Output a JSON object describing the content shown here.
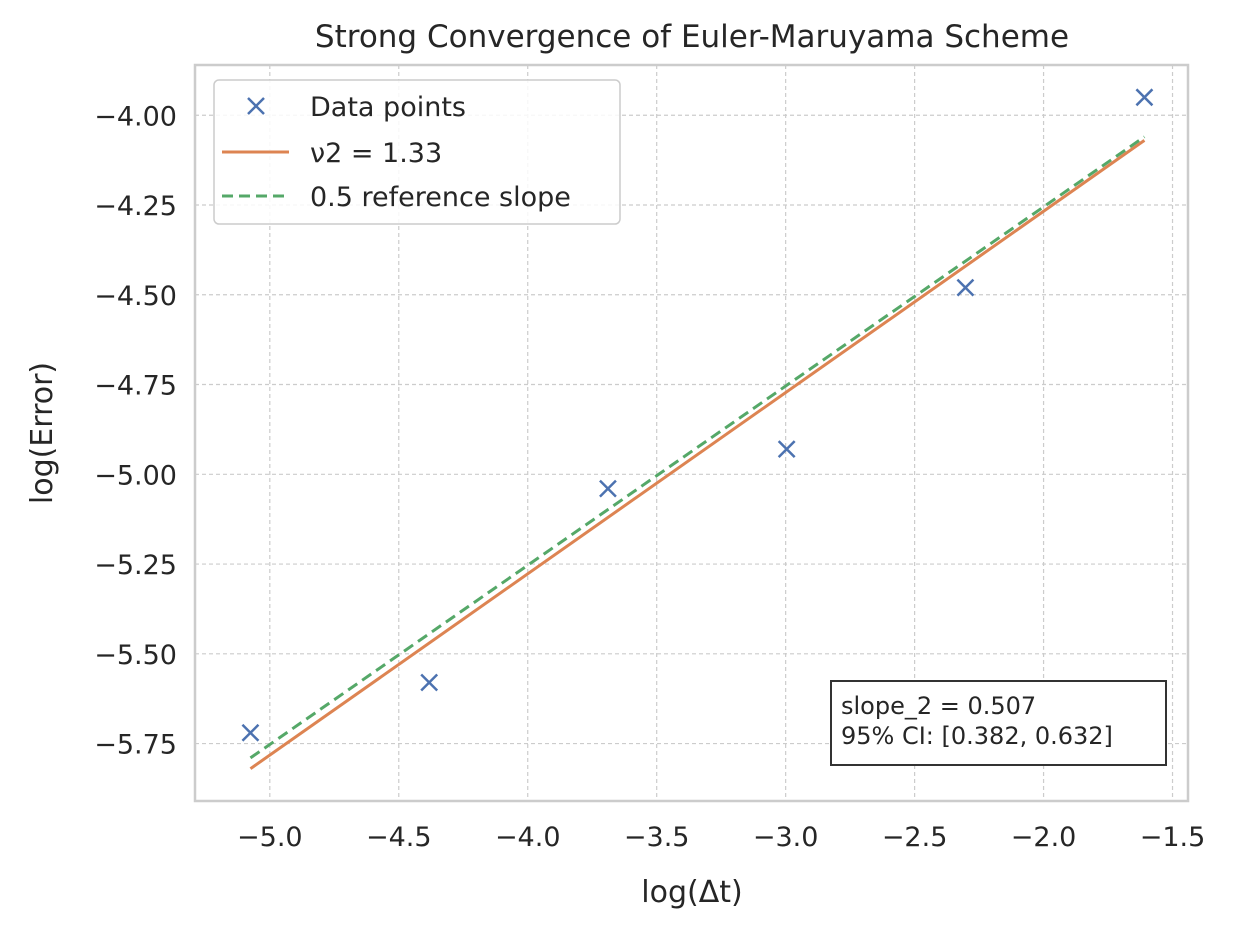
{
  "chart_data": {
    "type": "scatter",
    "title": "Strong Convergence of Euler-Maruyama Scheme",
    "xlabel": "log(Δt)",
    "ylabel": "log(Error)",
    "xlim": [
      -5.29,
      -1.44
    ],
    "ylim": [
      -5.91,
      -3.86
    ],
    "x_ticks": [
      -5.0,
      -4.5,
      -4.0,
      -3.5,
      -3.0,
      -2.5,
      -2.0,
      -1.5
    ],
    "x_tick_labels": [
      "−5.0",
      "−4.5",
      "−4.0",
      "−3.5",
      "−3.0",
      "−2.5",
      "−2.0",
      "−1.5"
    ],
    "y_ticks": [
      -4.0,
      -4.25,
      -4.5,
      -4.75,
      -5.0,
      -5.25,
      -5.5,
      -5.75
    ],
    "y_tick_labels": [
      "−4.00",
      "−4.25",
      "−4.50",
      "−4.75",
      "−5.00",
      "−5.25",
      "−5.50",
      "−5.75"
    ],
    "grid": true,
    "legend_position": "top-left",
    "series": [
      {
        "name": "Data points",
        "type": "scatter",
        "marker": "x",
        "color": "#4c72b0",
        "x": [
          -5.075,
          -4.382,
          -3.689,
          -2.996,
          -2.303,
          -1.609
        ],
        "y": [
          -5.72,
          -5.58,
          -5.04,
          -4.93,
          -4.48,
          -3.95
        ]
      },
      {
        "name": "ν2 = 1.33",
        "type": "line",
        "style": "solid",
        "color": "#dd8452",
        "x": [
          -5.075,
          -1.609
        ],
        "y": [
          -5.82,
          -4.07
        ]
      },
      {
        "name": "0.5 reference slope",
        "type": "line",
        "style": "dashed",
        "color": "#55a868",
        "x": [
          -5.075,
          -1.609
        ],
        "y": [
          -5.79,
          -4.06
        ]
      }
    ],
    "annotation": {
      "lines": [
        "slope_2 = 0.507",
        "95% CI: [0.382, 0.632]"
      ],
      "position": "bottom-right"
    }
  }
}
